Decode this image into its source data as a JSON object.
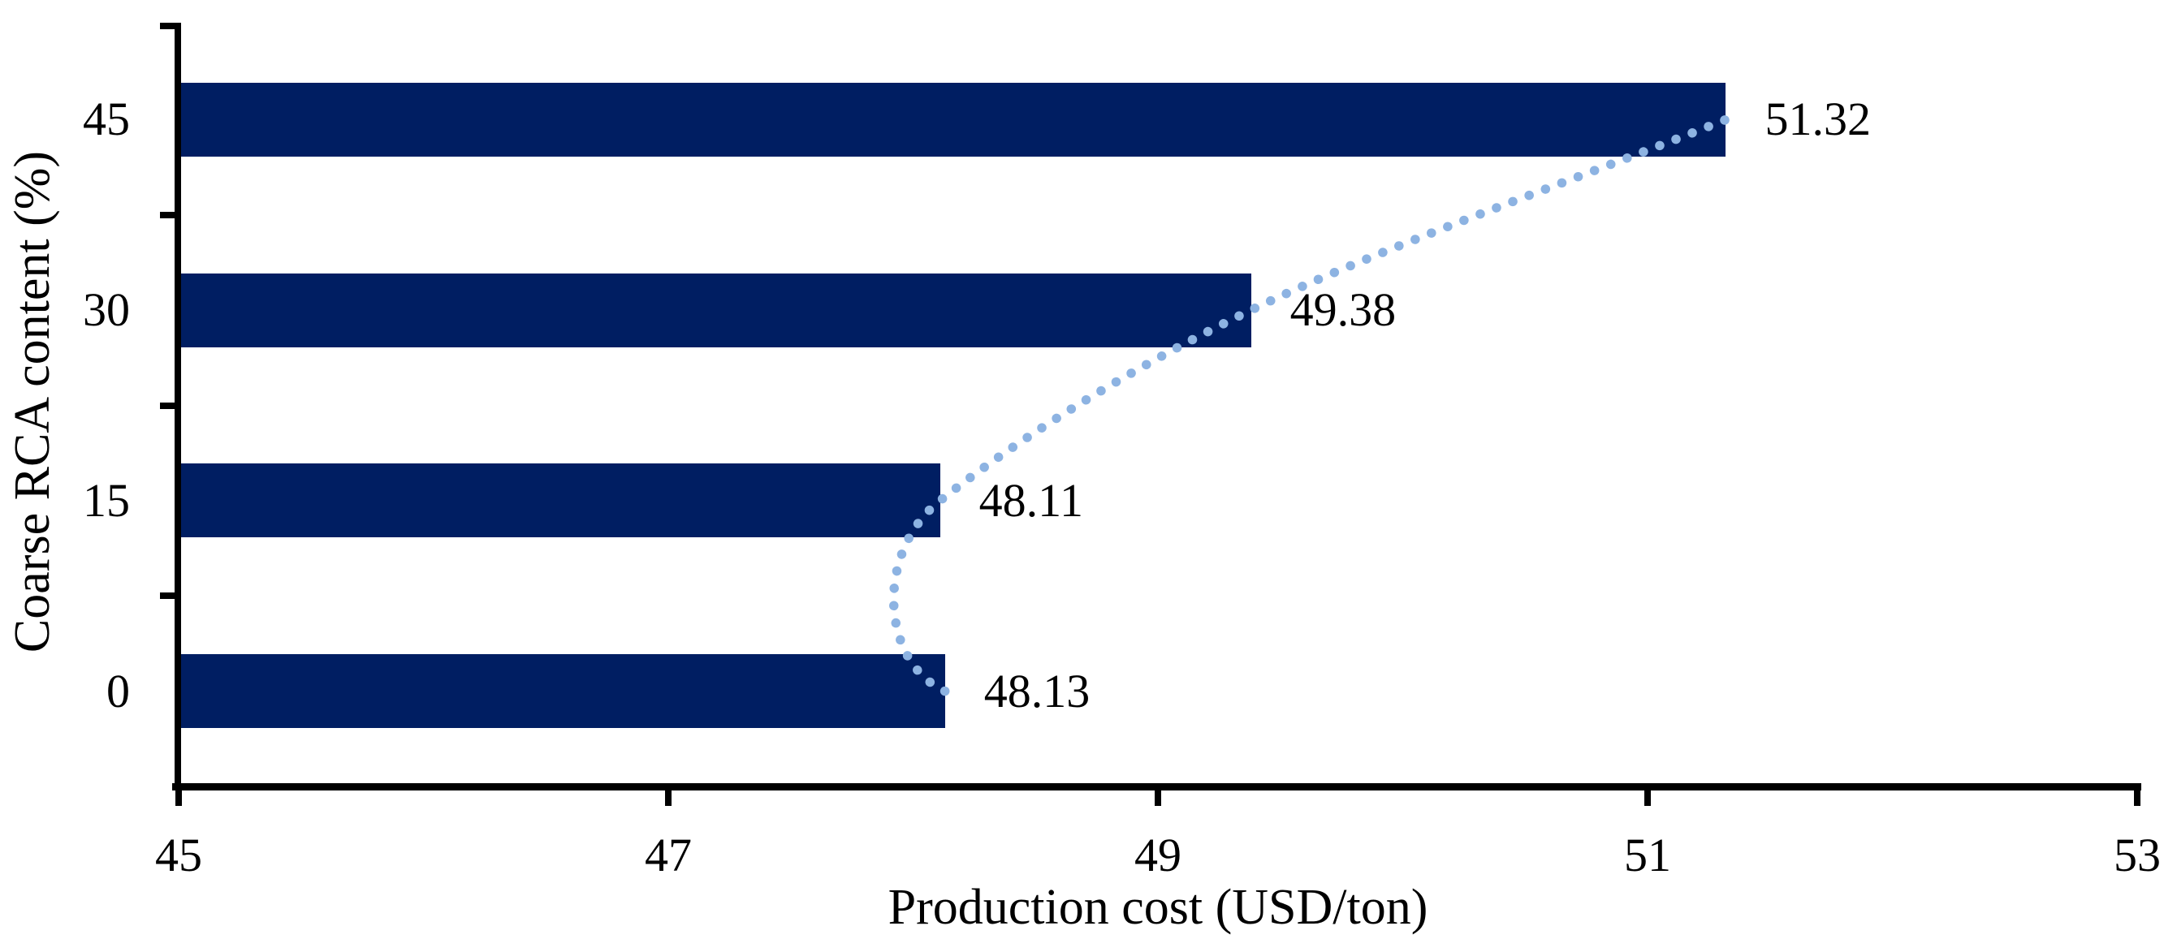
{
  "chart_data": {
    "type": "bar",
    "orientation": "horizontal",
    "categories": [
      "45",
      "30",
      "15",
      "0"
    ],
    "values": [
      51.32,
      49.38,
      48.11,
      48.13
    ],
    "data_labels": [
      "51.32",
      "49.38",
      "48.11",
      "48.13"
    ],
    "xlabel": "Production cost (USD/ton)",
    "ylabel": "Coarse RCA content (%)",
    "xlim": [
      45,
      53
    ],
    "x_ticks": [
      45,
      47,
      49,
      51,
      53
    ],
    "x_tick_labels": [
      "45",
      "47",
      "49",
      "51",
      "53"
    ],
    "grid": false,
    "legend": false,
    "bar_color": "#001E62",
    "trendline": {
      "style": "smooth-dotted",
      "color": "#8DB3E2",
      "points": [
        {
          "x": 48.13,
          "category": "0"
        },
        {
          "x": 48.11,
          "category": "15"
        },
        {
          "x": 49.38,
          "category": "30"
        },
        {
          "x": 51.32,
          "category": "45"
        }
      ]
    }
  }
}
